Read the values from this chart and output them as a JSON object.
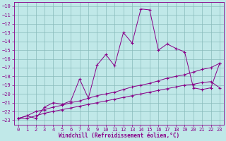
{
  "xlabel": "Windchill (Refroidissement éolien,°C)",
  "ylabel": "",
  "bg_color": "#c0e8e8",
  "grid_color": "#88bbbb",
  "line_color": "#880088",
  "xlim": [
    -0.5,
    23.5
  ],
  "ylim": [
    -23.5,
    -9.5
  ],
  "yticks": [
    -23,
    -22,
    -21,
    -20,
    -19,
    -18,
    -17,
    -16,
    -15,
    -14,
    -13,
    -12,
    -11,
    -10
  ],
  "xticks": [
    0,
    1,
    2,
    3,
    4,
    5,
    6,
    7,
    8,
    9,
    10,
    11,
    12,
    13,
    14,
    15,
    16,
    17,
    18,
    19,
    20,
    21,
    22,
    23
  ],
  "line1_x": [
    0,
    1,
    2,
    3,
    4,
    5,
    6,
    7,
    8,
    9,
    10,
    11,
    12,
    13,
    14,
    15,
    16,
    17,
    18,
    19,
    20,
    21,
    22,
    23
  ],
  "line1_y": [
    -22.8,
    -22.5,
    -22.8,
    -21.5,
    -21.0,
    -21.2,
    -20.8,
    -18.3,
    -20.5,
    -16.7,
    -15.5,
    -16.8,
    -13.0,
    -14.2,
    -10.3,
    -10.4,
    -15.0,
    -14.3,
    -14.8,
    -15.2,
    -19.3,
    -19.5,
    -19.3,
    -16.5
  ],
  "line2_x": [
    0,
    1,
    2,
    3,
    4,
    5,
    6,
    7,
    8,
    9,
    10,
    11,
    12,
    13,
    14,
    15,
    16,
    17,
    18,
    19,
    20,
    21,
    22,
    23
  ],
  "line2_y": [
    -22.8,
    -22.5,
    -22.0,
    -21.8,
    -21.5,
    -21.3,
    -21.0,
    -20.8,
    -20.5,
    -20.2,
    -20.0,
    -19.8,
    -19.5,
    -19.2,
    -19.0,
    -18.8,
    -18.5,
    -18.2,
    -18.0,
    -17.8,
    -17.5,
    -17.2,
    -17.0,
    -16.5
  ],
  "line3_x": [
    0,
    1,
    2,
    3,
    4,
    5,
    6,
    7,
    8,
    9,
    10,
    11,
    12,
    13,
    14,
    15,
    16,
    17,
    18,
    19,
    20,
    21,
    22,
    23
  ],
  "line3_y": [
    -22.8,
    -22.8,
    -22.5,
    -22.2,
    -22.0,
    -21.8,
    -21.6,
    -21.4,
    -21.2,
    -21.0,
    -20.8,
    -20.6,
    -20.4,
    -20.2,
    -20.0,
    -19.8,
    -19.6,
    -19.4,
    -19.2,
    -19.0,
    -18.9,
    -18.7,
    -18.6,
    -19.3
  ],
  "xlabel_fontsize": 5.5,
  "tick_fontsize": 5.0
}
